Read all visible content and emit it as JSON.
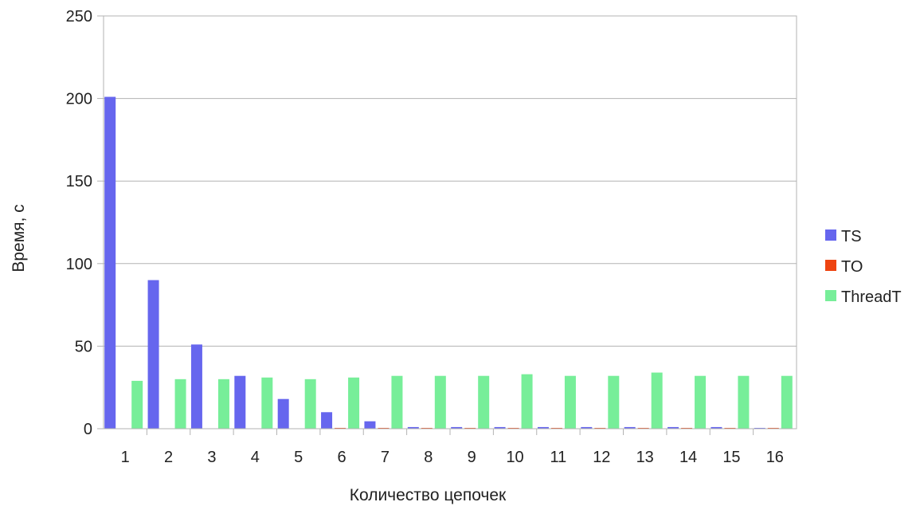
{
  "chart_data": {
    "type": "bar",
    "title": "",
    "xlabel": "Количество цепочек",
    "ylabel": "Время, с",
    "ylim": [
      0,
      250
    ],
    "yticks": [
      0,
      50,
      100,
      150,
      200,
      250
    ],
    "grid": true,
    "legend_position": "right",
    "categories": [
      "1",
      "2",
      "3",
      "4",
      "5",
      "6",
      "7",
      "8",
      "9",
      "10",
      "11",
      "12",
      "13",
      "14",
      "15",
      "16"
    ],
    "series": [
      {
        "name": "TS",
        "color": "#6666ee",
        "values": [
          201,
          90,
          51,
          32,
          18,
          10,
          4.5,
          1,
          1,
          1,
          1,
          1,
          1,
          1,
          1,
          0.5
        ]
      },
      {
        "name": "TO",
        "color": "#ee4411",
        "values": [
          0,
          0,
          0,
          0,
          0,
          0.5,
          0.5,
          0.5,
          0.5,
          0.5,
          0.5,
          0.5,
          0.5,
          0.5,
          0.5,
          0.5
        ]
      },
      {
        "name": "ThreadT",
        "color": "#77ee99",
        "values": [
          29,
          30,
          30,
          31,
          30,
          31,
          32,
          32,
          32,
          33,
          32,
          32,
          34,
          32,
          32,
          32
        ]
      }
    ]
  }
}
